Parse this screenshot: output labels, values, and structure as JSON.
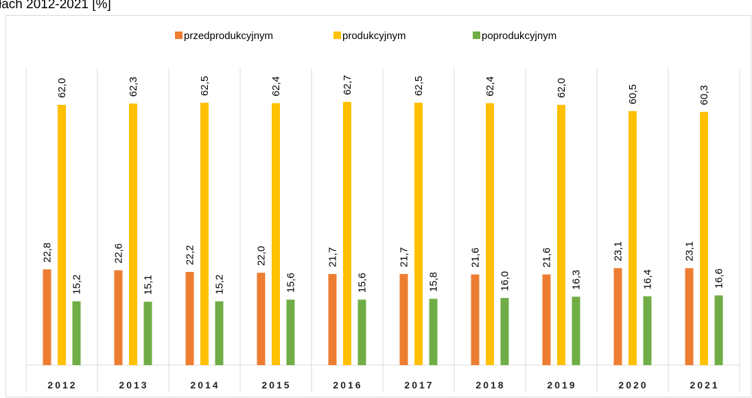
{
  "chart_data": {
    "type": "bar",
    "title": "łach 2012-2021 [%]",
    "categories": [
      "2012",
      "2013",
      "2014",
      "2015",
      "2016",
      "2017",
      "2018",
      "2019",
      "2020",
      "2021"
    ],
    "series": [
      {
        "name": "przedprodukcyjnym",
        "color": "#ed7d31",
        "values": [
          22.8,
          22.6,
          22.2,
          22.0,
          21.7,
          21.7,
          21.6,
          21.6,
          23.1,
          23.1
        ],
        "value_labels": [
          "22,8",
          "22,6",
          "22,2",
          "22,0",
          "21,7",
          "21,7",
          "21,6",
          "21,6",
          "23,1",
          "23,1"
        ]
      },
      {
        "name": "produkcyjnym",
        "color": "#ffc000",
        "values": [
          62.0,
          62.3,
          62.5,
          62.4,
          62.7,
          62.5,
          62.4,
          62.0,
          60.5,
          60.3
        ],
        "value_labels": [
          "62,0",
          "62,3",
          "62,5",
          "62,4",
          "62,7",
          "62,5",
          "62,4",
          "62,0",
          "60,5",
          "60,3"
        ]
      },
      {
        "name": "poprodukcyjnym",
        "color": "#70ad47",
        "values": [
          15.2,
          15.1,
          15.2,
          15.6,
          15.6,
          15.8,
          16.0,
          16.3,
          16.4,
          16.6
        ],
        "value_labels": [
          "15,2",
          "15,1",
          "15,2",
          "15,6",
          "15,6",
          "15,8",
          "16,0",
          "16,3",
          "16,4",
          "16,6"
        ]
      }
    ],
    "ylim": [
      0,
      70
    ]
  }
}
